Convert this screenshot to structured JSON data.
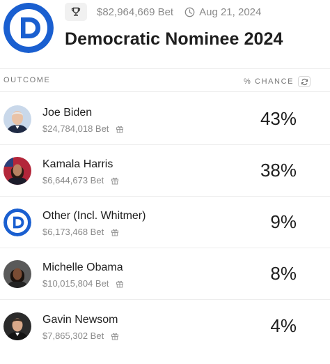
{
  "market": {
    "volume": "$82,964,669 Bet",
    "date": "Aug 21, 2024",
    "title": "Democratic Nominee 2024"
  },
  "table": {
    "outcome_header": "OUTCOME",
    "chance_header": "% CHANCE"
  },
  "outcomes": [
    {
      "name": "Joe Biden",
      "bet": "$24,784,018 Bet",
      "chance": "43%"
    },
    {
      "name": "Kamala Harris",
      "bet": "$6,644,673 Bet",
      "chance": "38%"
    },
    {
      "name": "Other (Incl. Whitmer)",
      "bet": "$6,173,468 Bet",
      "chance": "9%"
    },
    {
      "name": "Michelle Obama",
      "bet": "$10,015,804 Bet",
      "chance": "8%"
    },
    {
      "name": "Gavin Newsom",
      "bet": "$7,865,302 Bet",
      "chance": "4%"
    }
  ],
  "colors": {
    "brand_blue": "#1a5fd0",
    "text": "#1e1e1e",
    "muted": "#8a8a8a"
  }
}
